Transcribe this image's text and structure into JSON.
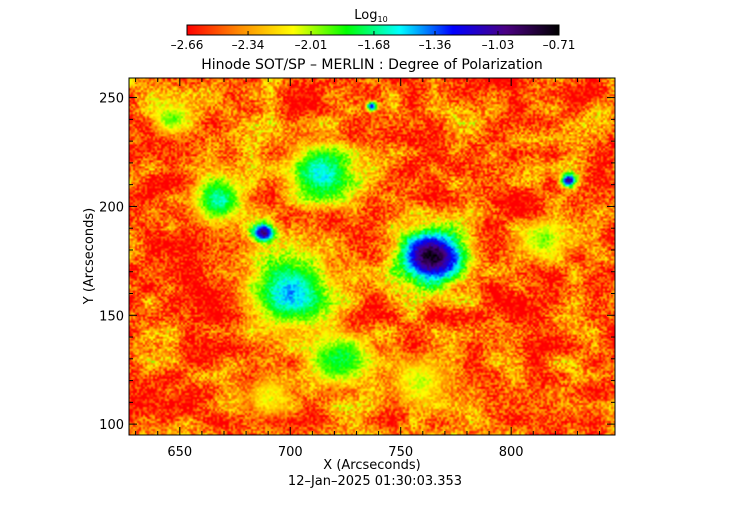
{
  "chart_data": {
    "type": "heatmap",
    "title": "Hinode SOT/SP – MERLIN : Degree of Polarization",
    "xlabel": "X (Arcseconds)",
    "ylabel": "Y (Arcseconds)",
    "timestamp": "12–Jan–2025 01:30:03.353",
    "xlim": [
      627,
      847
    ],
    "ylim": [
      95,
      259
    ],
    "xticks": [
      650,
      700,
      750,
      800
    ],
    "xtick_labels": [
      "650",
      "700",
      "750",
      "800"
    ],
    "yticks": [
      100,
      150,
      200,
      250
    ],
    "ytick_labels": [
      "100",
      "150",
      "200",
      "250"
    ],
    "colorbar": {
      "label_main": "Log",
      "label_sub": "10",
      "min": -2.66,
      "max": -0.71,
      "ticks": [
        -2.66,
        -2.34,
        -2.01,
        -1.68,
        -1.36,
        -1.03,
        -0.71
      ],
      "tick_labels": [
        "–2.66",
        "–2.34",
        "–2.01",
        "–1.68",
        "–1.36",
        "–1.03",
        "–0.71"
      ],
      "colors": [
        "#ff0000",
        "#ff8c00",
        "#ffff00",
        "#00ff00",
        "#00ffff",
        "#0000ff",
        "#4b0082",
        "#000000"
      ]
    },
    "features": [
      {
        "name": "sunspot",
        "x": 764,
        "y": 177,
        "radius": 17,
        "value": -0.75
      },
      {
        "name": "pore",
        "x": 688,
        "y": 188,
        "radius": 6,
        "value": -0.9
      },
      {
        "name": "pore",
        "x": 826,
        "y": 212,
        "radius": 4,
        "value": -1.0
      },
      {
        "name": "pore",
        "x": 737,
        "y": 246,
        "radius": 3,
        "value": -1.2
      },
      {
        "name": "plage",
        "x": 700,
        "y": 160,
        "radius": 22,
        "value": -1.45
      },
      {
        "name": "plage",
        "x": 668,
        "y": 203,
        "radius": 14,
        "value": -1.6
      },
      {
        "name": "plage",
        "x": 714,
        "y": 215,
        "radius": 18,
        "value": -1.55
      },
      {
        "name": "plage",
        "x": 722,
        "y": 130,
        "radius": 16,
        "value": -1.75
      },
      {
        "name": "network",
        "x": 646,
        "y": 240,
        "radius": 10,
        "value": -1.9
      },
      {
        "name": "network",
        "x": 815,
        "y": 185,
        "radius": 12,
        "value": -1.95
      },
      {
        "name": "network",
        "x": 760,
        "y": 120,
        "radius": 14,
        "value": -2.05
      },
      {
        "name": "network",
        "x": 690,
        "y": 112,
        "radius": 12,
        "value": -2.1
      }
    ]
  }
}
